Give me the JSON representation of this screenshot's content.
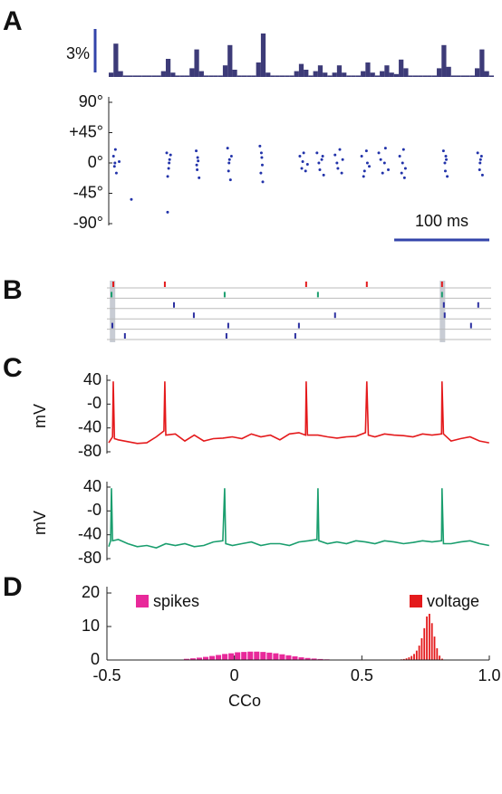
{
  "chart_data": [
    {
      "type": "histogram",
      "panel": "A",
      "color": "#3d3b78",
      "xlim": [
        0,
        405
      ],
      "scale_bar": {
        "value": 3,
        "label": "3%"
      },
      "scale_color": "#3344aa",
      "bins": [
        0,
        5,
        10,
        15,
        20,
        25,
        30,
        35,
        40,
        45,
        50,
        55,
        60,
        65,
        70,
        75,
        80,
        85,
        90,
        95,
        100,
        105,
        110,
        115,
        120,
        125,
        130,
        135,
        140,
        145,
        150,
        155,
        160,
        165,
        170,
        175,
        180,
        185,
        190,
        195,
        200,
        205,
        210,
        215,
        220,
        225,
        230,
        235,
        240,
        245,
        250,
        255,
        260,
        265,
        270,
        275,
        280,
        285,
        290,
        295,
        300,
        305,
        310,
        315,
        320,
        325,
        330,
        335,
        340,
        345,
        350,
        355,
        360,
        365,
        370,
        375,
        380,
        385,
        390,
        395,
        400,
        405
      ],
      "values": [
        0.3,
        2.3,
        0.4,
        0.1,
        0.1,
        0.1,
        0.1,
        0.1,
        0.1,
        0.1,
        0.1,
        0.4,
        1.25,
        0.3,
        0.1,
        0.1,
        0.1,
        0.6,
        1.9,
        0.4,
        0.1,
        0.1,
        0.1,
        0.1,
        0.8,
        2.2,
        0.5,
        0.1,
        0.1,
        0.1,
        0.1,
        1.0,
        3.0,
        0.3,
        0.1,
        0.1,
        0.1,
        0.1,
        0.1,
        0.4,
        0.9,
        0.5,
        0.1,
        0.4,
        0.8,
        0.3,
        0.1,
        0.3,
        0.8,
        0.3,
        0.1,
        0.1,
        0.1,
        0.4,
        1.0,
        0.3,
        0.1,
        0.4,
        0.8,
        0.3,
        0.2,
        1.2,
        0.6,
        0.1,
        0.1,
        0.1,
        0.1,
        0.1,
        0.1,
        0.6,
        2.2,
        0.7,
        0.1,
        0.1,
        0.1,
        0.1,
        0.1,
        0.6,
        1.9,
        0.4,
        0.1
      ]
    },
    {
      "type": "scatter",
      "color": "#2233aa",
      "xlim": [
        0,
        405
      ],
      "ylim": [
        -90,
        90
      ],
      "yticks": [
        {
          "value": 90,
          "label": "90°"
        },
        {
          "value": 45,
          "label": "+45°"
        },
        {
          "value": 0,
          "label": "0°"
        },
        {
          "value": -45,
          "label": "-45°"
        },
        {
          "value": -90,
          "label": "-90°"
        }
      ],
      "scale_bar": {
        "value": 100,
        "label": "100 ms"
      },
      "scale_color": "#3344aa",
      "x": [
        5,
        6,
        7,
        8,
        6.5,
        11,
        61,
        63,
        64,
        62,
        63.5,
        65,
        92,
        93,
        94,
        95,
        93.5,
        92.5,
        125,
        126,
        127,
        128,
        126.5,
        129,
        159,
        160,
        161,
        162,
        161.5,
        160.5,
        201,
        203,
        205,
        207,
        204,
        209,
        219,
        222,
        224,
        226,
        221,
        225,
        238,
        241,
        243,
        245,
        240,
        246,
        266,
        269,
        271,
        274,
        272,
        268,
        284,
        288,
        291,
        294,
        290,
        286,
        306,
        308,
        310,
        312,
        309,
        311,
        352,
        354,
        355,
        356,
        353.5,
        354.5,
        388,
        390,
        391,
        393,
        390.5,
        392,
        23.8,
        61.9
      ],
      "values": [
        10,
        -5,
        20,
        -15,
        0,
        2,
        15,
        -8,
        5,
        -20,
        0,
        12,
        18,
        -10,
        3,
        -22,
        8,
        -3,
        22,
        -12,
        5,
        -25,
        0,
        10,
        25,
        -15,
        8,
        -28,
        -3,
        15,
        10,
        -8,
        15,
        -12,
        2,
        -2,
        15,
        -10,
        5,
        -18,
        0,
        10,
        12,
        -8,
        20,
        -15,
        0,
        5,
        10,
        -12,
        18,
        -5,
        0,
        -20,
        15,
        -15,
        22,
        -10,
        0,
        5,
        10,
        -15,
        20,
        -8,
        0,
        -22,
        18,
        -12,
        5,
        -20,
        0,
        10,
        15,
        -10,
        5,
        -18,
        0,
        10,
        -54,
        -73
      ]
    },
    {
      "type": "raster",
      "panel": "B",
      "xlim": [
        0,
        405
      ],
      "highlights": [
        4,
        351
      ],
      "series": [
        {
          "color": "#e41a1c",
          "values": [
            4.8,
            59,
            207.6,
            271.4,
            350.5
          ]
        },
        {
          "color": "#1a9e6e",
          "values": [
            2.9,
            121.9,
            220,
            350.5
          ]
        },
        {
          "color": "#2b2fa0",
          "values": [
            68.6,
            352.4,
            388.6
          ]
        },
        {
          "color": "#2b2fa0",
          "values": [
            89.5,
            238,
            353.3
          ]
        },
        {
          "color": "#2b2fa0",
          "values": [
            3.8,
            125.7,
            200,
            381
          ]
        },
        {
          "color": "#2b2fa0",
          "values": [
            17,
            123.8,
            196.2
          ]
        }
      ]
    },
    {
      "type": "line",
      "panel": "C",
      "ylabel": "mV",
      "color": "#e41a1c",
      "xlim": [
        0,
        405
      ],
      "ylim": [
        -80,
        40
      ],
      "yticks": [
        40,
        {
          "value": 0,
          "label": "-0"
        },
        -40,
        -80
      ],
      "x": [
        0,
        4,
        4.8,
        6,
        10,
        20,
        30,
        40,
        50,
        58,
        59,
        60,
        70,
        80,
        90,
        100,
        110,
        120,
        130,
        140,
        150,
        160,
        170,
        180,
        190,
        200,
        207,
        207.6,
        209,
        220,
        230,
        240,
        250,
        260,
        270,
        271.4,
        273,
        280,
        290,
        300,
        310,
        320,
        330,
        340,
        350,
        350.5,
        352,
        360,
        370,
        380,
        390,
        400
      ],
      "values": [
        -65,
        -55,
        38,
        -58,
        -60,
        -63,
        -66,
        -65,
        -55,
        -45,
        38,
        -52,
        -50,
        -62,
        -52,
        -62,
        -58,
        -57,
        -55,
        -58,
        -50,
        -55,
        -52,
        -60,
        -50,
        -48,
        -52,
        38,
        -52,
        -52,
        -55,
        -57,
        -55,
        -54,
        -48,
        38,
        -52,
        -55,
        -50,
        -52,
        -53,
        -55,
        -50,
        -52,
        -50,
        38,
        -50,
        -62,
        -58,
        -55,
        -62,
        -65
      ]
    },
    {
      "type": "line",
      "ylabel": "mV",
      "color": "#1a9e6e",
      "xlim": [
        0,
        405
      ],
      "ylim": [
        -80,
        40
      ],
      "yticks": [
        40,
        {
          "value": 0,
          "label": "-0"
        },
        -40,
        -80
      ],
      "x": [
        0,
        2,
        2.9,
        4,
        10,
        20,
        30,
        40,
        50,
        60,
        70,
        80,
        90,
        100,
        110,
        120,
        121.9,
        123,
        130,
        140,
        150,
        160,
        170,
        180,
        190,
        200,
        210,
        219,
        220,
        221,
        230,
        240,
        250,
        260,
        270,
        280,
        290,
        300,
        310,
        320,
        330,
        340,
        350,
        350.5,
        352,
        360,
        370,
        380,
        390,
        400
      ],
      "values": [
        -60,
        -50,
        38,
        -50,
        -48,
        -55,
        -60,
        -58,
        -62,
        -55,
        -58,
        -55,
        -60,
        -58,
        -52,
        -50,
        38,
        -55,
        -58,
        -55,
        -52,
        -58,
        -55,
        -55,
        -58,
        -52,
        -50,
        -48,
        38,
        -50,
        -55,
        -52,
        -55,
        -50,
        -52,
        -55,
        -50,
        -52,
        -55,
        -53,
        -50,
        -52,
        -50,
        38,
        -55,
        -55,
        -52,
        -50,
        -55,
        -58
      ]
    },
    {
      "type": "histogram",
      "panel": "D",
      "xlabel": "CCo",
      "xlim": [
        -0.5,
        1
      ],
      "ylim": [
        0,
        20
      ],
      "xticks": [
        -0.5,
        0,
        0.5,
        {
          "value": 1,
          "label": "1.0"
        }
      ],
      "yticks": [
        0,
        10,
        20
      ],
      "series": [
        {
          "name": "spikes",
          "color": "#e8299a",
          "bins": [
            -0.2,
            -0.175,
            -0.15,
            -0.125,
            -0.1,
            -0.075,
            -0.05,
            -0.025,
            0,
            0.025,
            0.05,
            0.075,
            0.1,
            0.125,
            0.15,
            0.175,
            0.2,
            0.225,
            0.25,
            0.275,
            0.3,
            0.325,
            0.35,
            0.375,
            0.4,
            0.425,
            0.45
          ],
          "values": [
            0.35,
            0.5,
            0.7,
            0.93,
            1.2,
            1.5,
            1.8,
            2.0,
            2.3,
            2.4,
            2.5,
            2.5,
            2.4,
            2.2,
            2.0,
            1.7,
            1.4,
            1.1,
            0.8,
            0.6,
            0.44,
            0.3,
            0.2,
            0.13,
            0.08,
            0.05
          ]
        },
        {
          "name": "voltage",
          "color": "#e41a1c",
          "bins": [
            0.65,
            0.66,
            0.67,
            0.68,
            0.69,
            0.7,
            0.71,
            0.72,
            0.73,
            0.74,
            0.75,
            0.76,
            0.77,
            0.78,
            0.79,
            0.8,
            0.81,
            0.82,
            0.83
          ],
          "values": [
            0.2,
            0.3,
            0.5,
            0.8,
            1.2,
            1.8,
            2.8,
            4.3,
            6.5,
            9.5,
            13,
            13.8,
            11,
            7,
            3.5,
            1.3,
            0.4,
            0.1
          ]
        }
      ]
    }
  ]
}
